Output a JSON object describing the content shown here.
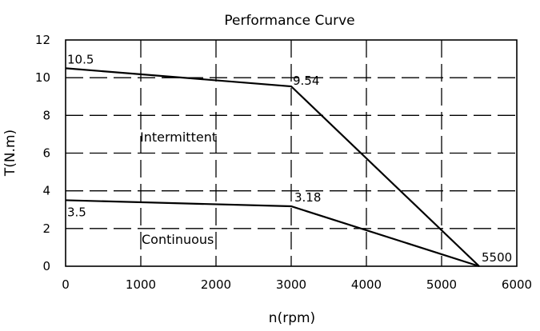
{
  "chart_data": {
    "type": "line",
    "title": "Performance Curve",
    "xlabel": "n(rpm)",
    "ylabel": "T(N.m)",
    "xlim": [
      0,
      6000
    ],
    "ylim": [
      0,
      12
    ],
    "x_ticks": [
      0,
      1000,
      2000,
      3000,
      4000,
      5000,
      6000
    ],
    "y_ticks": [
      0,
      2,
      4,
      6,
      8,
      10,
      12
    ],
    "grid": true,
    "grid_style": "dashed",
    "series": [
      {
        "label": "Intermittent",
        "x": [
          0,
          3000,
          5500
        ],
        "y": [
          10.5,
          9.54,
          0
        ]
      },
      {
        "label": "Continuous",
        "x": [
          0,
          3000,
          5500
        ],
        "y": [
          3.5,
          3.18,
          0
        ]
      }
    ],
    "annotations": [
      "10.5",
      "9.54",
      "3.18",
      "3.5",
      "5500"
    ],
    "region_labels": [
      "Intermittent",
      "Continuous"
    ]
  }
}
